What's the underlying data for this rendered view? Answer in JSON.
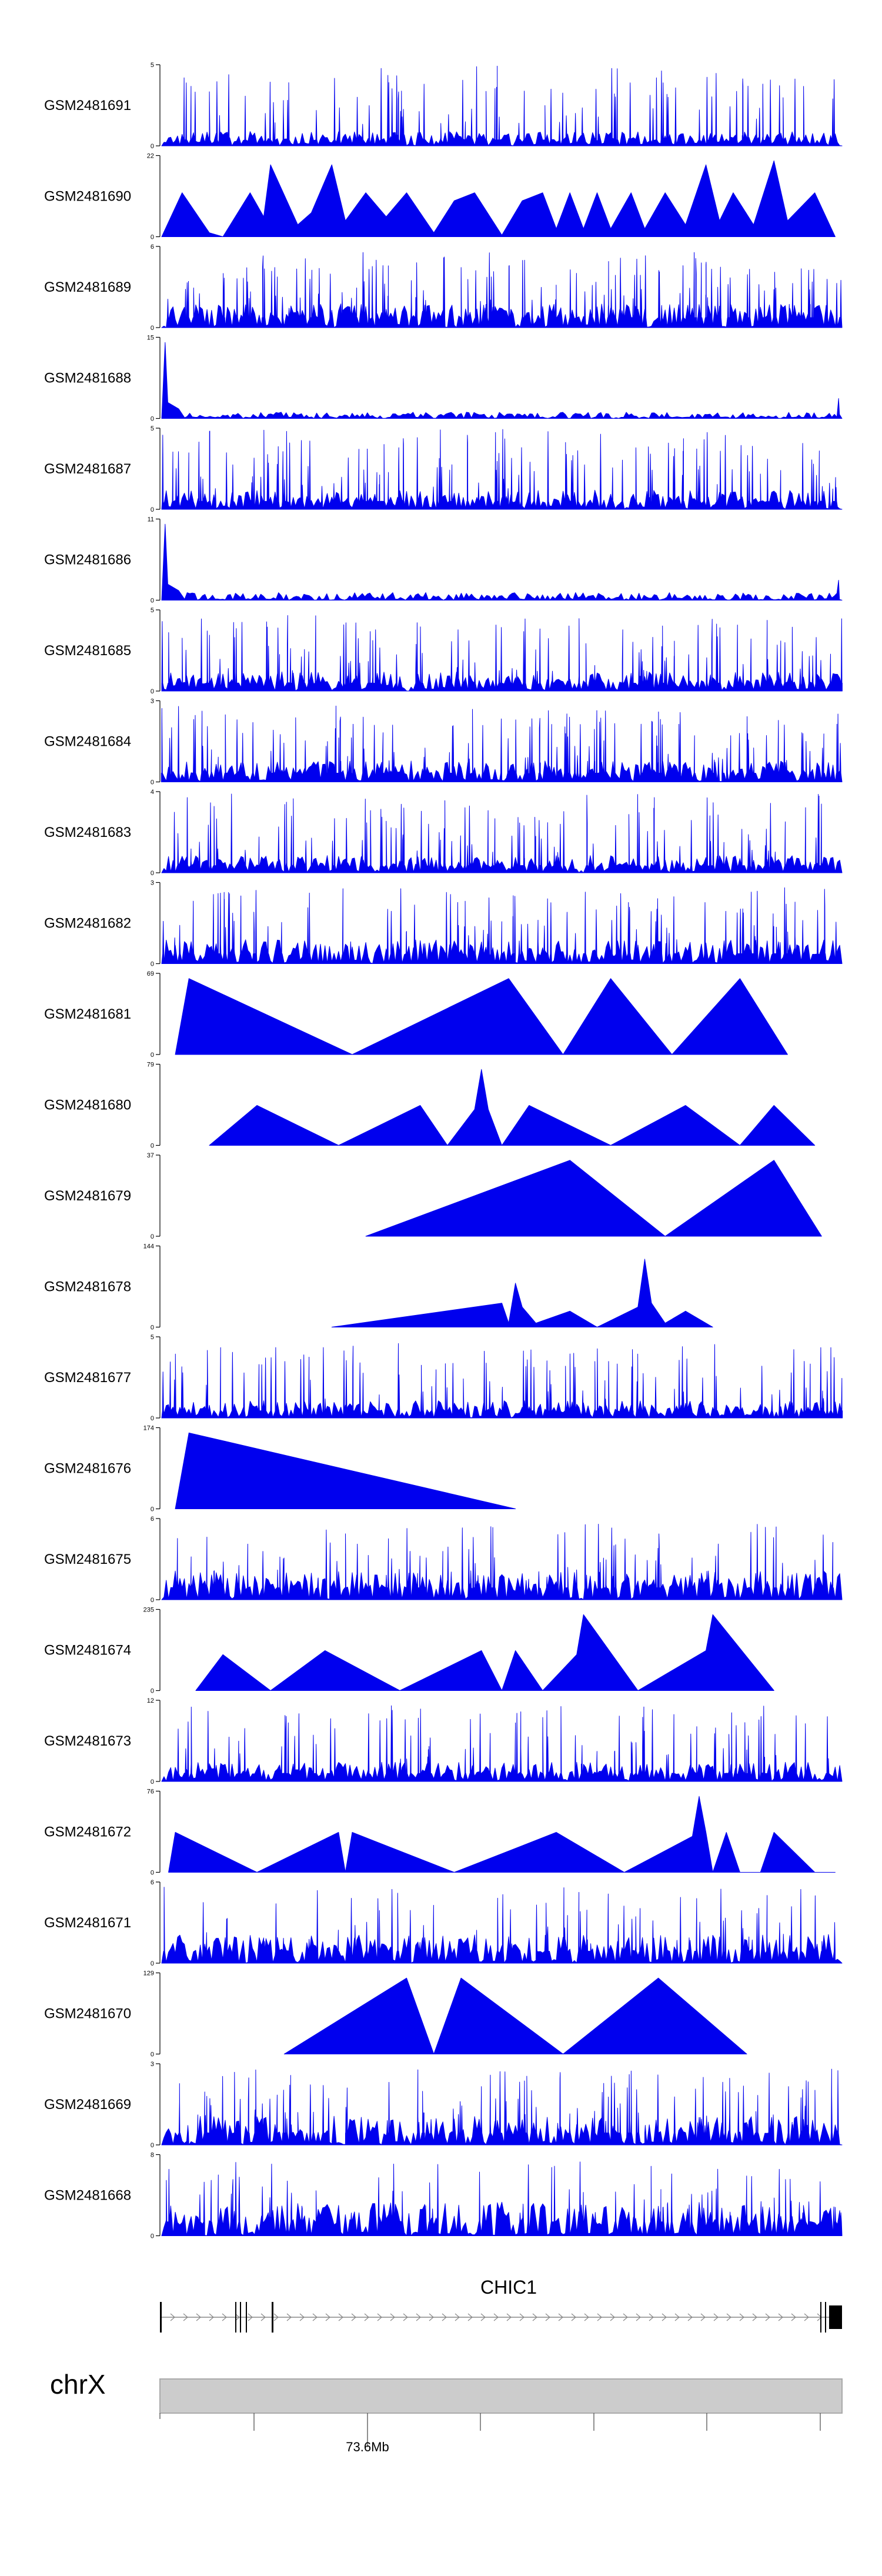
{
  "chart_data": {
    "type": "area",
    "title": "",
    "chromosome": "chrX",
    "position_label": "73.6Mb",
    "gene": {
      "name": "CHIC1",
      "strand": "+"
    },
    "colors": {
      "signal": "#0000ee",
      "axis": "#000000",
      "gene": "#000000",
      "chromosome_band": "#cccccc",
      "chromosome_border": "#aaaaaa",
      "intron_arrow": "#888888"
    },
    "tracks": [
      {
        "name": "GSM2481691",
        "ymax": "5",
        "ymin": "0",
        "pattern": "dense",
        "baseline": 0.15,
        "peak_count": 90,
        "peak_max": 1.0,
        "seed": 11
      },
      {
        "name": "GSM2481690",
        "ymax": "22",
        "ymin": "0",
        "pattern": "triangles",
        "points": [
          [
            0,
            0
          ],
          [
            0.03,
            0.55
          ],
          [
            0.07,
            0.05
          ],
          [
            0.09,
            0
          ],
          [
            0.13,
            0.55
          ],
          [
            0.15,
            0.25
          ],
          [
            0.16,
            0.9
          ],
          [
            0.2,
            0.15
          ],
          [
            0.22,
            0.3
          ],
          [
            0.25,
            0.9
          ],
          [
            0.27,
            0.2
          ],
          [
            0.3,
            0.55
          ],
          [
            0.33,
            0.25
          ],
          [
            0.36,
            0.55
          ],
          [
            0.4,
            0.05
          ],
          [
            0.43,
            0.45
          ],
          [
            0.46,
            0.55
          ],
          [
            0.5,
            0.02
          ],
          [
            0.53,
            0.45
          ],
          [
            0.56,
            0.55
          ],
          [
            0.58,
            0.1
          ],
          [
            0.6,
            0.55
          ],
          [
            0.62,
            0.1
          ],
          [
            0.64,
            0.55
          ],
          [
            0.66,
            0.1
          ],
          [
            0.69,
            0.55
          ],
          [
            0.71,
            0.1
          ],
          [
            0.74,
            0.55
          ],
          [
            0.77,
            0.15
          ],
          [
            0.8,
            0.9
          ],
          [
            0.82,
            0.2
          ],
          [
            0.84,
            0.55
          ],
          [
            0.87,
            0.15
          ],
          [
            0.9,
            0.95
          ],
          [
            0.92,
            0.2
          ],
          [
            0.96,
            0.55
          ],
          [
            0.99,
            0
          ]
        ]
      },
      {
        "name": "GSM2481689",
        "ymax": "6",
        "ymin": "0",
        "pattern": "dense",
        "baseline": 0.25,
        "peak_count": 130,
        "peak_max": 0.95,
        "seed": 23
      },
      {
        "name": "GSM2481688",
        "ymax": "15",
        "ymin": "0",
        "pattern": "spike_low",
        "baseline": 0.05,
        "spike_pos": 0.005,
        "spike_h": 0.95,
        "seed": 31
      },
      {
        "name": "GSM2481687",
        "ymax": "5",
        "ymin": "0",
        "pattern": "dense",
        "baseline": 0.2,
        "peak_count": 120,
        "peak_max": 1.0,
        "seed": 37
      },
      {
        "name": "GSM2481686",
        "ymax": "11",
        "ymin": "0",
        "pattern": "spike_low",
        "baseline": 0.06,
        "spike_pos": 0.005,
        "spike_h": 0.95,
        "seed": 41
      },
      {
        "name": "GSM2481685",
        "ymax": "5",
        "ymin": "0",
        "pattern": "dense",
        "baseline": 0.2,
        "peak_count": 110,
        "peak_max": 0.95,
        "seed": 47
      },
      {
        "name": "GSM2481684",
        "ymax": "3",
        "ymin": "0",
        "pattern": "dense",
        "baseline": 0.22,
        "peak_count": 120,
        "peak_max": 0.95,
        "seed": 53
      },
      {
        "name": "GSM2481683",
        "ymax": "4",
        "ymin": "0",
        "pattern": "dense",
        "baseline": 0.18,
        "peak_count": 110,
        "peak_max": 1.0,
        "seed": 59
      },
      {
        "name": "GSM2481682",
        "ymax": "3",
        "ymin": "0",
        "pattern": "dense",
        "baseline": 0.25,
        "peak_count": 100,
        "peak_max": 0.95,
        "seed": 61
      },
      {
        "name": "GSM2481681",
        "ymax": "69",
        "ymin": "0",
        "pattern": "triangles",
        "points": [
          [
            0.02,
            0
          ],
          [
            0.04,
            0.95
          ],
          [
            0.28,
            0
          ],
          [
            0.51,
            0.95
          ],
          [
            0.59,
            0
          ],
          [
            0.66,
            0.95
          ],
          [
            0.75,
            0
          ],
          [
            0.85,
            0.95
          ],
          [
            0.92,
            0
          ]
        ]
      },
      {
        "name": "GSM2481680",
        "ymax": "79",
        "ymin": "0",
        "pattern": "triangles",
        "points": [
          [
            0.07,
            0
          ],
          [
            0.14,
            0.5
          ],
          [
            0.26,
            0
          ],
          [
            0.38,
            0.5
          ],
          [
            0.42,
            0
          ],
          [
            0.46,
            0.45
          ],
          [
            0.47,
            0.95
          ],
          [
            0.48,
            0.45
          ],
          [
            0.5,
            0
          ],
          [
            0.54,
            0.5
          ],
          [
            0.66,
            0
          ],
          [
            0.77,
            0.5
          ],
          [
            0.85,
            0
          ],
          [
            0.9,
            0.5
          ],
          [
            0.96,
            0
          ]
        ]
      },
      {
        "name": "GSM2481679",
        "ymax": "37",
        "ymin": "0",
        "pattern": "triangles",
        "points": [
          [
            0.3,
            0
          ],
          [
            0.6,
            0.95
          ],
          [
            0.74,
            0
          ],
          [
            0.9,
            0.95
          ],
          [
            0.97,
            0
          ]
        ]
      },
      {
        "name": "GSM2481678",
        "ymax": "144",
        "ymin": "0",
        "pattern": "triangles",
        "points": [
          [
            0.25,
            0
          ],
          [
            0.5,
            0.3
          ],
          [
            0.51,
            0.05
          ],
          [
            0.52,
            0.55
          ],
          [
            0.53,
            0.25
          ],
          [
            0.55,
            0.05
          ],
          [
            0.6,
            0.2
          ],
          [
            0.64,
            0
          ],
          [
            0.7,
            0.25
          ],
          [
            0.71,
            0.85
          ],
          [
            0.72,
            0.3
          ],
          [
            0.74,
            0.05
          ],
          [
            0.77,
            0.2
          ],
          [
            0.81,
            0
          ]
        ]
      },
      {
        "name": "GSM2481677",
        "ymax": "5",
        "ymin": "0",
        "pattern": "dense",
        "baseline": 0.18,
        "peak_count": 100,
        "peak_max": 0.95,
        "seed": 67
      },
      {
        "name": "GSM2481676",
        "ymax": "174",
        "ymin": "0",
        "pattern": "triangles",
        "points": [
          [
            0.02,
            0
          ],
          [
            0.04,
            0.95
          ],
          [
            0.52,
            0
          ]
        ]
      },
      {
        "name": "GSM2481675",
        "ymax": "6",
        "ymin": "0",
        "pattern": "dense",
        "baseline": 0.3,
        "peak_count": 80,
        "peak_max": 0.95,
        "seed": 71
      },
      {
        "name": "GSM2481674",
        "ymax": "235",
        "ymin": "0",
        "pattern": "triangles",
        "points": [
          [
            0.05,
            0
          ],
          [
            0.09,
            0.45
          ],
          [
            0.16,
            0
          ],
          [
            0.24,
            0.5
          ],
          [
            0.35,
            0
          ],
          [
            0.47,
            0.5
          ],
          [
            0.5,
            0
          ],
          [
            0.52,
            0.5
          ],
          [
            0.56,
            0
          ],
          [
            0.61,
            0.45
          ],
          [
            0.62,
            0.95
          ],
          [
            0.7,
            0
          ],
          [
            0.8,
            0.5
          ],
          [
            0.81,
            0.95
          ],
          [
            0.9,
            0
          ]
        ]
      },
      {
        "name": "GSM2481673",
        "ymax": "12",
        "ymin": "0",
        "pattern": "dense",
        "baseline": 0.2,
        "peak_count": 90,
        "peak_max": 0.95,
        "seed": 79
      },
      {
        "name": "GSM2481672",
        "ymax": "76",
        "ymin": "0",
        "pattern": "triangles",
        "points": [
          [
            0.01,
            0
          ],
          [
            0.02,
            0.5
          ],
          [
            0.14,
            0
          ],
          [
            0.26,
            0.5
          ],
          [
            0.27,
            0
          ],
          [
            0.28,
            0.5
          ],
          [
            0.43,
            0
          ],
          [
            0.58,
            0.5
          ],
          [
            0.68,
            0
          ],
          [
            0.78,
            0.45
          ],
          [
            0.79,
            0.95
          ],
          [
            0.8,
            0.5
          ],
          [
            0.81,
            0
          ],
          [
            0.83,
            0.5
          ],
          [
            0.85,
            0
          ],
          [
            0.88,
            0
          ],
          [
            0.9,
            0.5
          ],
          [
            0.96,
            0
          ],
          [
            0.99,
            0
          ]
        ]
      },
      {
        "name": "GSM2481671",
        "ymax": "6",
        "ymin": "0",
        "pattern": "dense",
        "baseline": 0.3,
        "peak_count": 70,
        "peak_max": 0.95,
        "seed": 83
      },
      {
        "name": "GSM2481670",
        "ymax": "129",
        "ymin": "0",
        "pattern": "triangles",
        "points": [
          [
            0.18,
            0
          ],
          [
            0.36,
            0.95
          ],
          [
            0.4,
            0
          ],
          [
            0.44,
            0.95
          ],
          [
            0.59,
            0
          ],
          [
            0.73,
            0.95
          ],
          [
            0.86,
            0
          ]
        ]
      },
      {
        "name": "GSM2481669",
        "ymax": "3",
        "ymin": "0",
        "pattern": "dense",
        "baseline": 0.3,
        "peak_count": 110,
        "peak_max": 0.95,
        "seed": 89
      },
      {
        "name": "GSM2481668",
        "ymax": "8",
        "ymin": "0",
        "pattern": "dense",
        "baseline": 0.35,
        "peak_count": 70,
        "peak_max": 0.95,
        "seed": 97
      }
    ]
  }
}
